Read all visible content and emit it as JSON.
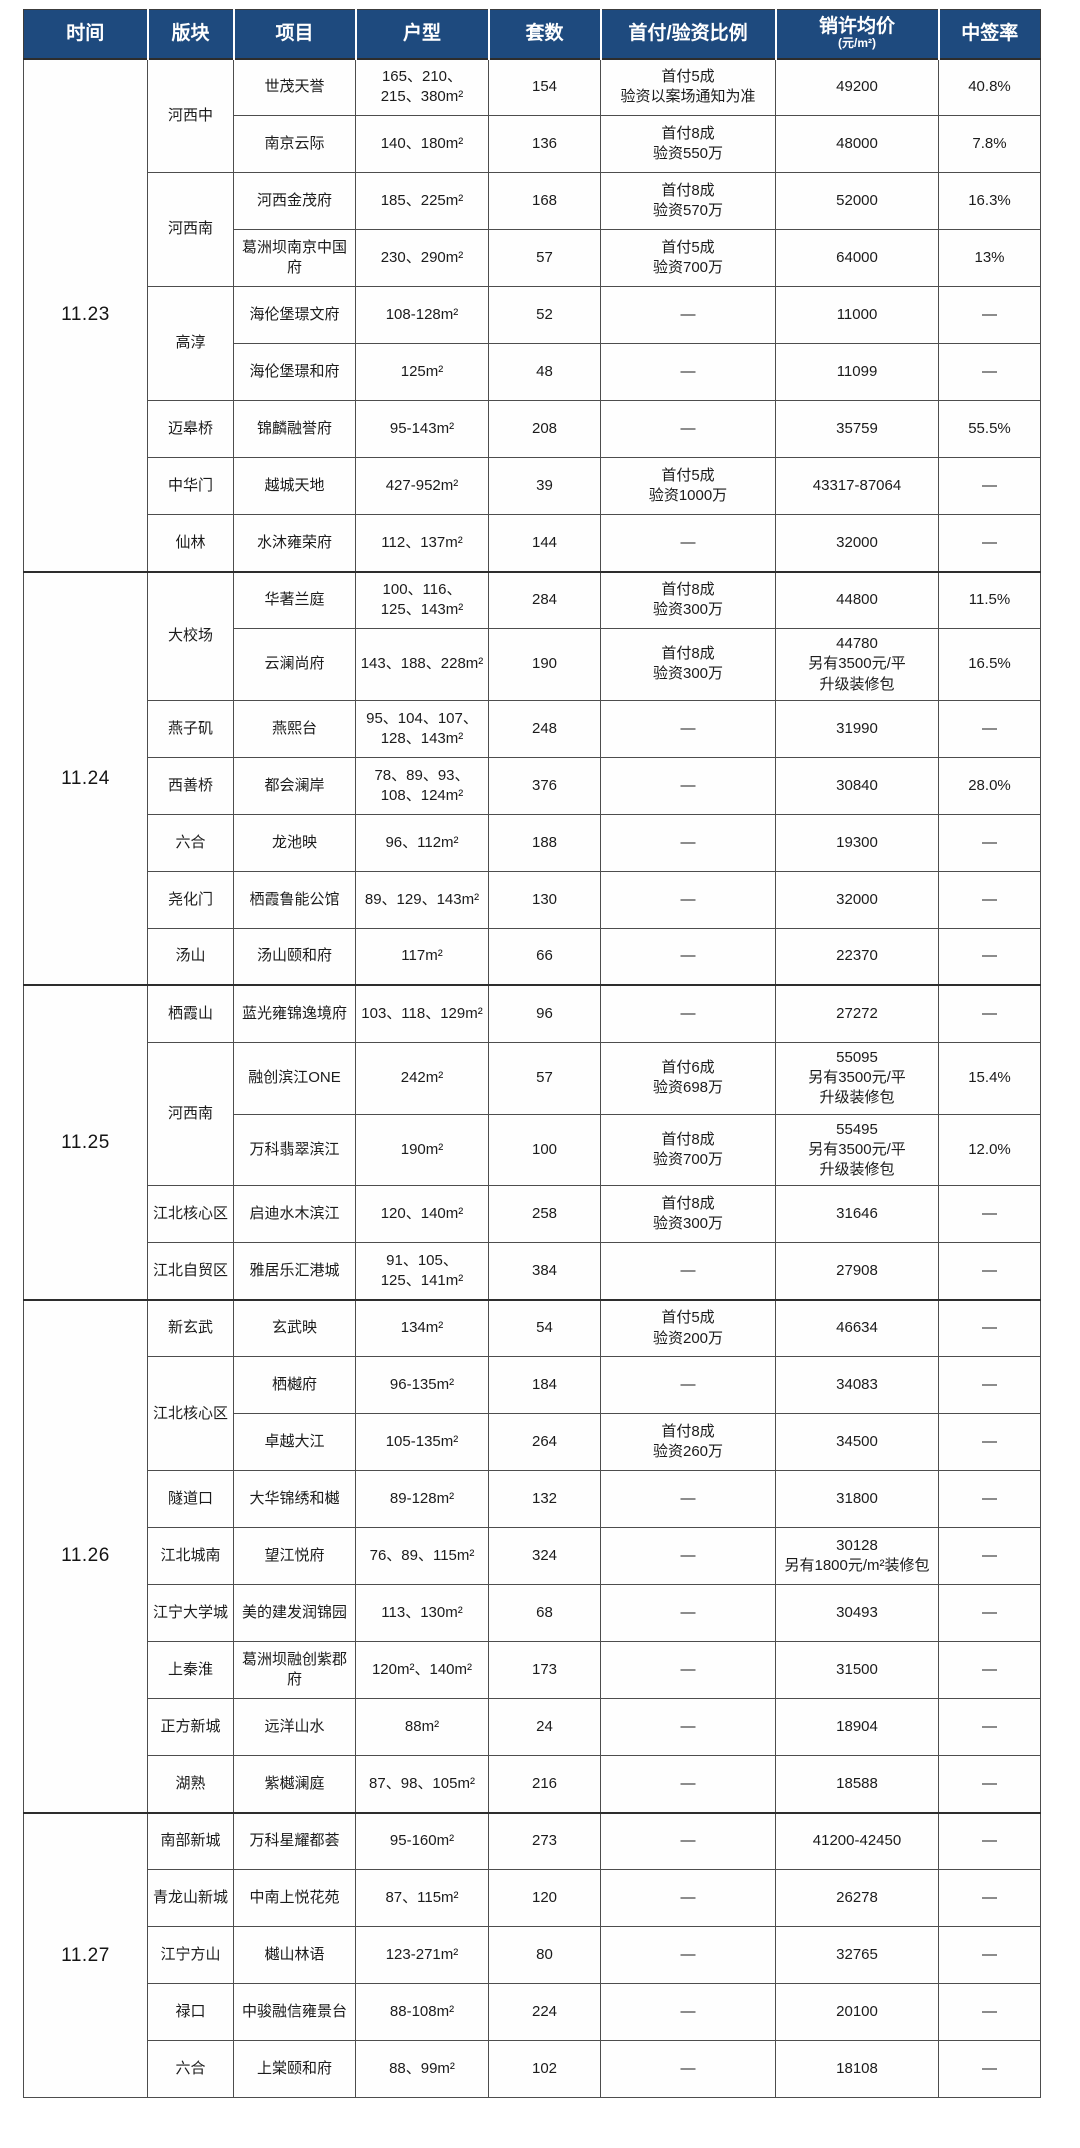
{
  "header": {
    "bg": "#1E4A7E",
    "cells": [
      {
        "label": "时间"
      },
      {
        "label": "版块"
      },
      {
        "label": "项目"
      },
      {
        "label": "户型"
      },
      {
        "label": "套数"
      },
      {
        "label": "首付/验资比例"
      },
      {
        "label": "销许均价",
        "sub": "(元/m²)"
      },
      {
        "label": "中签率"
      }
    ]
  },
  "groups": [
    {
      "date": "11.23",
      "blocks": [
        {
          "name": "河西中",
          "projects": [
            {
              "project": "世茂天誉",
              "units": "165、210、\n215、380m²",
              "count": "154",
              "payment": "首付5成\n验资以案场通知为准",
              "price": "49200",
              "rate": "40.8%"
            },
            {
              "project": "南京云际",
              "units": "140、180m²",
              "count": "136",
              "payment": "首付8成\n验资550万",
              "price": "48000",
              "rate": "7.8%"
            }
          ]
        },
        {
          "name": "河西南",
          "projects": [
            {
              "project": "河西金茂府",
              "units": "185、225m²",
              "count": "168",
              "payment": "首付8成\n验资570万",
              "price": "52000",
              "rate": "16.3%"
            },
            {
              "project": "葛洲坝南京中国府",
              "units": "230、290m²",
              "count": "57",
              "payment": "首付5成\n验资700万",
              "price": "64000",
              "rate": "13%"
            }
          ]
        },
        {
          "name": "高淳",
          "projects": [
            {
              "project": "海伦堡璟文府",
              "units": "108-128m²",
              "count": "52",
              "payment": "—",
              "price": "11000",
              "rate": "—"
            },
            {
              "project": "海伦堡璟和府",
              "units": "125m²",
              "count": "48",
              "payment": "—",
              "price": "11099",
              "rate": "—"
            }
          ]
        },
        {
          "name": "迈皋桥",
          "projects": [
            {
              "project": "锦麟融誉府",
              "units": "95-143m²",
              "count": "208",
              "payment": "—",
              "price": "35759",
              "rate": "55.5%"
            }
          ]
        },
        {
          "name": "中华门",
          "projects": [
            {
              "project": "越城天地",
              "units": "427-952m²",
              "count": "39",
              "payment": "首付5成\n验资1000万",
              "price": "43317-87064",
              "rate": "—"
            }
          ]
        },
        {
          "name": "仙林",
          "projects": [
            {
              "project": "水沐雍荣府",
              "units": "112、137m²",
              "count": "144",
              "payment": "—",
              "price": "32000",
              "rate": "—"
            }
          ]
        }
      ]
    },
    {
      "date": "11.24",
      "blocks": [
        {
          "name": "大校场",
          "projects": [
            {
              "project": "华著兰庭",
              "units": "100、116、\n125、143m²",
              "count": "284",
              "payment": "首付8成\n验资300万",
              "price": "44800",
              "rate": "11.5%"
            },
            {
              "project": "云澜尚府",
              "units": "143、188、228m²",
              "count": "190",
              "payment": "首付8成\n验资300万",
              "price": "44780\n另有3500元/平\n升级装修包",
              "rate": "16.5%"
            }
          ]
        },
        {
          "name": "燕子矶",
          "projects": [
            {
              "project": "燕熙台",
              "units": "95、104、107、\n128、143m²",
              "count": "248",
              "payment": "—",
              "price": "31990",
              "rate": "—"
            }
          ]
        },
        {
          "name": "西善桥",
          "projects": [
            {
              "project": "都会澜岸",
              "units": "78、89、93、\n108、124m²",
              "count": "376",
              "payment": "—",
              "price": "30840",
              "rate": "28.0%"
            }
          ]
        },
        {
          "name": "六合",
          "projects": [
            {
              "project": "龙池映",
              "units": "96、112m²",
              "count": "188",
              "payment": "—",
              "price": "19300",
              "rate": "—"
            }
          ]
        },
        {
          "name": "尧化门",
          "projects": [
            {
              "project": "栖霞鲁能公馆",
              "units": "89、129、143m²",
              "count": "130",
              "payment": "—",
              "price": "32000",
              "rate": "—"
            }
          ]
        },
        {
          "name": "汤山",
          "projects": [
            {
              "project": "汤山颐和府",
              "units": "117m²",
              "count": "66",
              "payment": "—",
              "price": "22370",
              "rate": "—"
            }
          ]
        }
      ]
    },
    {
      "date": "11.25",
      "blocks": [
        {
          "name": "栖霞山",
          "projects": [
            {
              "project": "蓝光雍锦逸境府",
              "units": "103、118、129m²",
              "count": "96",
              "payment": "—",
              "price": "27272",
              "rate": "—"
            }
          ]
        },
        {
          "name": "河西南",
          "projects": [
            {
              "project": "融创滨江ONE",
              "units": "242m²",
              "count": "57",
              "payment": "首付6成\n验资698万",
              "price": "55095\n另有3500元/平\n升级装修包",
              "rate": "15.4%"
            },
            {
              "project": "万科翡翠滨江",
              "units": "190m²",
              "count": "100",
              "payment": "首付8成\n验资700万",
              "price": "55495\n另有3500元/平\n升级装修包",
              "rate": "12.0%"
            }
          ]
        },
        {
          "name": "江北核心区",
          "projects": [
            {
              "project": "启迪水木滨江",
              "units": "120、140m²",
              "count": "258",
              "payment": "首付8成\n验资300万",
              "price": "31646",
              "rate": "—"
            }
          ]
        },
        {
          "name": "江北自贸区",
          "projects": [
            {
              "project": "雅居乐汇港城",
              "units": "91、105、\n125、141m²",
              "count": "384",
              "payment": "—",
              "price": "27908",
              "rate": "—"
            }
          ]
        }
      ]
    },
    {
      "date": "11.26",
      "blocks": [
        {
          "name": "新玄武",
          "projects": [
            {
              "project": "玄武映",
              "units": "134m²",
              "count": "54",
              "payment": "首付5成\n验资200万",
              "price": "46634",
              "rate": "—"
            }
          ]
        },
        {
          "name": "江北核心区",
          "projects": [
            {
              "project": "栖樾府",
              "units": "96-135m²",
              "count": "184",
              "payment": "—",
              "price": "34083",
              "rate": "—"
            },
            {
              "project": "卓越大江",
              "units": "105-135m²",
              "count": "264",
              "payment": "首付8成\n验资260万",
              "price": "34500",
              "rate": "—"
            }
          ]
        },
        {
          "name": "隧道口",
          "projects": [
            {
              "project": "大华锦绣和樾",
              "units": "89-128m²",
              "count": "132",
              "payment": "—",
              "price": "31800",
              "rate": "—"
            }
          ]
        },
        {
          "name": "江北城南",
          "projects": [
            {
              "project": "望江悦府",
              "units": "76、89、115m²",
              "count": "324",
              "payment": "—",
              "price": "30128\n另有1800元/m²装修包",
              "rate": "—"
            }
          ]
        },
        {
          "name": "江宁大学城",
          "projects": [
            {
              "project": "美的建发润锦园",
              "units": "113、130m²",
              "count": "68",
              "payment": "—",
              "price": "30493",
              "rate": "—"
            }
          ]
        },
        {
          "name": "上秦淮",
          "projects": [
            {
              "project": "葛洲坝融创紫郡府",
              "units": "120m²、140m²",
              "count": "173",
              "payment": "—",
              "price": "31500",
              "rate": "—"
            }
          ]
        },
        {
          "name": "正方新城",
          "projects": [
            {
              "project": "远洋山水",
              "units": "88m²",
              "count": "24",
              "payment": "—",
              "price": "18904",
              "rate": "—"
            }
          ]
        },
        {
          "name": "湖熟",
          "projects": [
            {
              "project": "紫樾澜庭",
              "units": "87、98、105m²",
              "count": "216",
              "payment": "—",
              "price": "18588",
              "rate": "—"
            }
          ]
        }
      ]
    },
    {
      "date": "11.27",
      "blocks": [
        {
          "name": "南部新城",
          "projects": [
            {
              "project": "万科星耀都荟",
              "units": "95-160m²",
              "count": "273",
              "payment": "—",
              "price": "41200-42450",
              "rate": "—"
            }
          ]
        },
        {
          "name": "青龙山新城",
          "projects": [
            {
              "project": "中南上悦花苑",
              "units": "87、115m²",
              "count": "120",
              "payment": "—",
              "price": "26278",
              "rate": "—"
            }
          ]
        },
        {
          "name": "江宁方山",
          "projects": [
            {
              "project": "樾山林语",
              "units": "123-271m²",
              "count": "80",
              "payment": "—",
              "price": "32765",
              "rate": "—"
            }
          ]
        },
        {
          "name": "禄口",
          "projects": [
            {
              "project": "中骏融信雍景台",
              "units": "88-108m²",
              "count": "224",
              "payment": "—",
              "price": "20100",
              "rate": "—"
            }
          ]
        },
        {
          "name": "六合",
          "projects": [
            {
              "project": "上棠颐和府",
              "units": "88、99m²",
              "count": "102",
              "payment": "—",
              "price": "18108",
              "rate": "—"
            }
          ]
        }
      ]
    }
  ]
}
